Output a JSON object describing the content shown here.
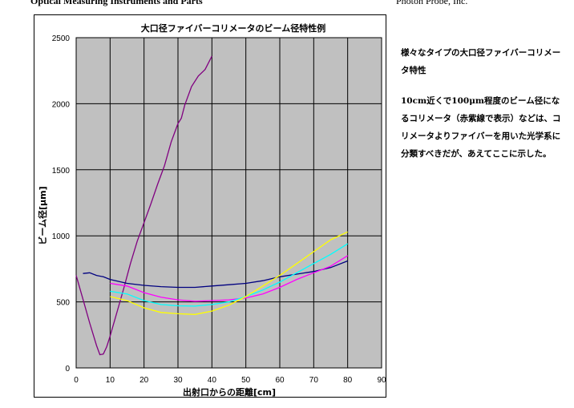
{
  "header": {
    "left": "Optical Measuring Instruments and Parts",
    "right": "Photon Probe, Inc."
  },
  "description": {
    "heading": "様々なタイプの大口径ファイバーコリメータ特性",
    "body": "10cm近くで100μm程度のビーム径になるコリメータ（赤紫線で表示）などは、コリメータよりファイバーを用いた光学系に分類すべきだが、あえてここに示した。"
  },
  "colors": {
    "plot_background": "#c0c0c0",
    "grid": "#000000"
  },
  "chart_data": {
    "type": "line",
    "title": "大口径ファイバーコリメータのビーム径特性例",
    "xlabel": "出射口からの距離[cm]",
    "ylabel": "ビーム径[μm]",
    "xlim": [
      0,
      90
    ],
    "ylim": [
      0,
      2500
    ],
    "xticks": [
      0,
      10,
      20,
      30,
      40,
      50,
      60,
      70,
      80,
      90
    ],
    "yticks": [
      0,
      500,
      1000,
      1500,
      2000,
      2500
    ],
    "grid": true,
    "legend": "none",
    "series": [
      {
        "color": "#800080",
        "x": [
          0,
          2,
          4,
          6,
          7,
          8,
          9,
          10,
          12,
          14,
          16,
          18,
          20,
          22,
          24,
          26,
          28,
          30,
          31,
          32,
          34,
          36,
          38,
          39,
          40
        ],
        "y": [
          700,
          520,
          340,
          170,
          100,
          105,
          160,
          240,
          420,
          600,
          790,
          960,
          1100,
          1240,
          1390,
          1530,
          1710,
          1850,
          1890,
          1990,
          2130,
          2210,
          2260,
          2310,
          2360
        ]
      },
      {
        "color": "#000080",
        "x": [
          2,
          4,
          6,
          8,
          10,
          15,
          20,
          25,
          30,
          35,
          40,
          45,
          50,
          55,
          60,
          65,
          70,
          75,
          80
        ],
        "y": [
          715,
          720,
          700,
          690,
          670,
          640,
          625,
          615,
          610,
          610,
          620,
          630,
          640,
          660,
          690,
          710,
          730,
          760,
          810
        ]
      },
      {
        "color": "#ff00ff",
        "x": [
          10,
          15,
          20,
          25,
          30,
          35,
          40,
          45,
          50,
          55,
          60,
          65,
          70,
          75,
          80
        ],
        "y": [
          640,
          620,
          570,
          535,
          515,
          505,
          510,
          515,
          530,
          560,
          610,
          670,
          720,
          770,
          850
        ]
      },
      {
        "color": "#00ffff",
        "x": [
          10,
          15,
          20,
          25,
          30,
          35,
          40,
          45,
          50,
          55,
          60,
          65,
          70,
          75,
          80
        ],
        "y": [
          580,
          560,
          510,
          480,
          470,
          468,
          480,
          500,
          540,
          590,
          650,
          720,
          790,
          860,
          940
        ]
      },
      {
        "color": "#ffff00",
        "x": [
          10,
          15,
          20,
          25,
          30,
          35,
          40,
          45,
          50,
          55,
          60,
          65,
          70,
          75,
          80
        ],
        "y": [
          540,
          510,
          455,
          420,
          410,
          405,
          430,
          475,
          540,
          620,
          700,
          790,
          880,
          970,
          1030
        ]
      }
    ]
  }
}
